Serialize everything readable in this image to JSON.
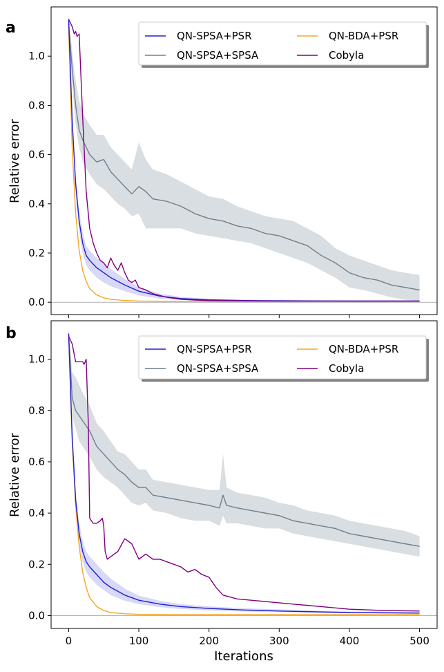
{
  "figure": {
    "xlabel": "Iterations"
  },
  "colors": {
    "qn_spsa_psr": "#1f1fd6",
    "qn_spsa_spsa": "#6e7f8d",
    "qn_bda_psr": "#f5a623",
    "cobyla": "#800080",
    "band_spsa_psr": "#c8c8f5",
    "band_spsa_spsa": "#c9d0d6",
    "reference_line": "#b0b0b0"
  },
  "chart_data": [
    {
      "panel": "a",
      "type": "line",
      "title": "",
      "xlabel": "",
      "ylabel": "Relative error",
      "xlim": [
        -25,
        525
      ],
      "ylim": [
        -0.05,
        1.2
      ],
      "xticks": [
        0,
        100,
        200,
        300,
        400,
        500
      ],
      "xticklabels": [
        "",
        "",
        "",
        "",
        "",
        ""
      ],
      "yticks": [
        0.0,
        0.2,
        0.4,
        0.6,
        0.8,
        1.0
      ],
      "yticklabels": [
        "0.0",
        "0.2",
        "0.4",
        "0.6",
        "0.8",
        "1.0"
      ],
      "legend": {
        "placement": "top-right",
        "columns": 2,
        "entries": [
          "QN-SPSA+PSR",
          "QN-SPSA+SPSA",
          "QN-BDA+PSR",
          "Cobyla"
        ]
      },
      "series": [
        {
          "name": "QN-SPSA+PSR",
          "color_key": "qn_spsa_psr",
          "x": [
            0,
            5,
            10,
            15,
            20,
            25,
            30,
            40,
            50,
            60,
            80,
            100,
            130,
            160,
            200,
            250,
            300,
            400,
            500
          ],
          "y": [
            1.15,
            0.74,
            0.48,
            0.33,
            0.24,
            0.19,
            0.17,
            0.14,
            0.12,
            0.1,
            0.07,
            0.045,
            0.025,
            0.015,
            0.01,
            0.007,
            0.006,
            0.005,
            0.005
          ],
          "band_lower": [
            1.15,
            0.7,
            0.44,
            0.29,
            0.2,
            0.15,
            0.13,
            0.1,
            0.08,
            0.065,
            0.045,
            0.028,
            0.015,
            0.01,
            0.006,
            0.004,
            0.003,
            0.003,
            0.003
          ],
          "band_upper": [
            1.15,
            0.78,
            0.52,
            0.37,
            0.28,
            0.23,
            0.21,
            0.18,
            0.16,
            0.135,
            0.095,
            0.062,
            0.035,
            0.022,
            0.014,
            0.01,
            0.009,
            0.007,
            0.007
          ]
        },
        {
          "name": "QN-SPSA+SPSA",
          "color_key": "qn_spsa_spsa",
          "x": [
            0,
            5,
            10,
            15,
            20,
            30,
            40,
            50,
            60,
            70,
            80,
            90,
            100,
            110,
            120,
            140,
            160,
            180,
            200,
            220,
            240,
            260,
            280,
            300,
            320,
            340,
            360,
            380,
            400,
            420,
            440,
            460,
            480,
            500
          ],
          "y": [
            1.13,
            0.95,
            0.8,
            0.7,
            0.66,
            0.6,
            0.57,
            0.58,
            0.53,
            0.5,
            0.47,
            0.44,
            0.47,
            0.45,
            0.42,
            0.41,
            0.39,
            0.36,
            0.34,
            0.33,
            0.31,
            0.3,
            0.28,
            0.27,
            0.25,
            0.23,
            0.19,
            0.16,
            0.12,
            0.1,
            0.09,
            0.07,
            0.06,
            0.05
          ],
          "band_lower": [
            1.1,
            0.88,
            0.72,
            0.63,
            0.57,
            0.52,
            0.48,
            0.46,
            0.43,
            0.4,
            0.38,
            0.35,
            0.36,
            0.3,
            0.3,
            0.3,
            0.3,
            0.28,
            0.27,
            0.26,
            0.25,
            0.24,
            0.22,
            0.2,
            0.18,
            0.16,
            0.13,
            0.1,
            0.06,
            0.05,
            0.035,
            0.02,
            0.01,
            0.005
          ],
          "band_upper": [
            1.17,
            1.02,
            0.9,
            0.82,
            0.77,
            0.72,
            0.68,
            0.68,
            0.63,
            0.6,
            0.57,
            0.54,
            0.65,
            0.58,
            0.54,
            0.52,
            0.49,
            0.46,
            0.43,
            0.42,
            0.39,
            0.37,
            0.35,
            0.34,
            0.33,
            0.3,
            0.27,
            0.22,
            0.19,
            0.17,
            0.15,
            0.13,
            0.12,
            0.11
          ]
        },
        {
          "name": "QN-BDA+PSR",
          "color_key": "qn_bda_psr",
          "x": [
            0,
            5,
            10,
            15,
            20,
            25,
            30,
            40,
            50,
            60,
            80,
            100,
            150,
            200,
            300,
            400,
            500
          ],
          "y": [
            1.12,
            0.63,
            0.36,
            0.21,
            0.13,
            0.085,
            0.055,
            0.03,
            0.018,
            0.012,
            0.007,
            0.005,
            0.004,
            0.003,
            0.003,
            0.003,
            0.003
          ]
        },
        {
          "name": "Cobyla",
          "color_key": "cobyla",
          "x": [
            0,
            5,
            8,
            10,
            12,
            15,
            20,
            25,
            30,
            35,
            40,
            45,
            50,
            55,
            60,
            65,
            70,
            75,
            80,
            85,
            90,
            95,
            100,
            110,
            120,
            140,
            160,
            180,
            200,
            250,
            300,
            400,
            500
          ],
          "y": [
            1.15,
            1.12,
            1.09,
            1.1,
            1.08,
            1.09,
            0.75,
            0.45,
            0.3,
            0.24,
            0.2,
            0.17,
            0.16,
            0.14,
            0.18,
            0.15,
            0.13,
            0.16,
            0.12,
            0.09,
            0.08,
            0.09,
            0.06,
            0.05,
            0.035,
            0.02,
            0.012,
            0.009,
            0.007,
            0.006,
            0.005,
            0.005,
            0.005
          ]
        }
      ]
    },
    {
      "panel": "b",
      "type": "line",
      "title": "",
      "xlabel": "Iterations",
      "ylabel": "Relative error",
      "xlim": [
        -25,
        525
      ],
      "ylim": [
        -0.05,
        1.15
      ],
      "xticks": [
        0,
        100,
        200,
        300,
        400,
        500
      ],
      "xticklabels": [
        "0",
        "100",
        "200",
        "300",
        "400",
        "500"
      ],
      "yticks": [
        0.0,
        0.2,
        0.4,
        0.6,
        0.8,
        1.0
      ],
      "yticklabels": [
        "0.0",
        "0.2",
        "0.4",
        "0.6",
        "0.8",
        "1.0"
      ],
      "legend": {
        "placement": "top-right",
        "columns": 2,
        "entries": [
          "QN-SPSA+PSR",
          "QN-SPSA+SPSA",
          "QN-BDA+PSR",
          "Cobyla"
        ]
      },
      "series": [
        {
          "name": "QN-SPSA+PSR",
          "color_key": "qn_spsa_psr",
          "x": [
            0,
            5,
            10,
            15,
            20,
            25,
            30,
            40,
            50,
            60,
            80,
            100,
            130,
            160,
            200,
            250,
            300,
            400,
            500
          ],
          "y": [
            1.1,
            0.7,
            0.45,
            0.32,
            0.25,
            0.21,
            0.19,
            0.16,
            0.13,
            0.11,
            0.08,
            0.06,
            0.045,
            0.035,
            0.028,
            0.022,
            0.018,
            0.012,
            0.01
          ],
          "band_lower": [
            1.1,
            0.66,
            0.41,
            0.28,
            0.21,
            0.17,
            0.15,
            0.12,
            0.1,
            0.08,
            0.058,
            0.045,
            0.033,
            0.026,
            0.02,
            0.016,
            0.013,
            0.009,
            0.007
          ],
          "band_upper": [
            1.1,
            0.74,
            0.49,
            0.36,
            0.29,
            0.25,
            0.23,
            0.2,
            0.17,
            0.145,
            0.105,
            0.078,
            0.058,
            0.045,
            0.036,
            0.029,
            0.024,
            0.016,
            0.013
          ]
        },
        {
          "name": "QN-SPSA+SPSA",
          "color_key": "qn_spsa_spsa",
          "x": [
            0,
            5,
            10,
            15,
            20,
            30,
            40,
            50,
            60,
            70,
            80,
            90,
            100,
            110,
            120,
            140,
            160,
            180,
            200,
            215,
            220,
            225,
            240,
            260,
            280,
            300,
            320,
            340,
            360,
            380,
            400,
            420,
            440,
            460,
            480,
            500
          ],
          "y": [
            1.1,
            0.85,
            0.8,
            0.78,
            0.76,
            0.72,
            0.66,
            0.63,
            0.6,
            0.57,
            0.55,
            0.52,
            0.5,
            0.5,
            0.47,
            0.46,
            0.45,
            0.44,
            0.43,
            0.42,
            0.47,
            0.43,
            0.42,
            0.41,
            0.4,
            0.39,
            0.37,
            0.36,
            0.35,
            0.34,
            0.32,
            0.31,
            0.3,
            0.29,
            0.28,
            0.27
          ],
          "band_lower": [
            1.08,
            0.78,
            0.73,
            0.68,
            0.66,
            0.62,
            0.57,
            0.54,
            0.52,
            0.5,
            0.47,
            0.44,
            0.43,
            0.44,
            0.41,
            0.4,
            0.38,
            0.37,
            0.37,
            0.35,
            0.39,
            0.36,
            0.36,
            0.35,
            0.34,
            0.34,
            0.32,
            0.31,
            0.3,
            0.29,
            0.28,
            0.27,
            0.26,
            0.25,
            0.24,
            0.23
          ],
          "band_upper": [
            1.12,
            0.95,
            0.93,
            0.9,
            0.87,
            0.82,
            0.75,
            0.72,
            0.68,
            0.64,
            0.63,
            0.6,
            0.57,
            0.57,
            0.53,
            0.52,
            0.51,
            0.5,
            0.49,
            0.49,
            0.63,
            0.5,
            0.48,
            0.47,
            0.46,
            0.44,
            0.43,
            0.41,
            0.4,
            0.39,
            0.37,
            0.36,
            0.35,
            0.34,
            0.33,
            0.31
          ]
        },
        {
          "name": "QN-BDA+PSR",
          "color_key": "qn_bda_psr",
          "x": [
            0,
            5,
            10,
            15,
            20,
            25,
            30,
            40,
            50,
            60,
            80,
            100,
            150,
            200,
            300,
            400,
            500
          ],
          "y": [
            1.1,
            0.68,
            0.43,
            0.27,
            0.17,
            0.11,
            0.07,
            0.035,
            0.02,
            0.012,
            0.007,
            0.005,
            0.004,
            0.004,
            0.004,
            0.004,
            0.004
          ]
        },
        {
          "name": "Cobyla",
          "color_key": "cobyla",
          "x": [
            0,
            5,
            10,
            15,
            20,
            22,
            25,
            28,
            30,
            35,
            40,
            45,
            48,
            50,
            52,
            55,
            60,
            70,
            80,
            90,
            100,
            110,
            120,
            130,
            140,
            150,
            160,
            170,
            180,
            190,
            200,
            210,
            220,
            240,
            260,
            280,
            300,
            320,
            340,
            360,
            400,
            450,
            500
          ],
          "y": [
            1.09,
            1.06,
            0.99,
            0.99,
            0.99,
            0.98,
            1.0,
            0.75,
            0.38,
            0.36,
            0.36,
            0.37,
            0.38,
            0.35,
            0.25,
            0.22,
            0.23,
            0.25,
            0.3,
            0.28,
            0.22,
            0.24,
            0.22,
            0.22,
            0.21,
            0.2,
            0.19,
            0.17,
            0.18,
            0.16,
            0.15,
            0.11,
            0.08,
            0.065,
            0.06,
            0.055,
            0.05,
            0.045,
            0.04,
            0.035,
            0.025,
            0.02,
            0.018
          ]
        }
      ]
    }
  ]
}
